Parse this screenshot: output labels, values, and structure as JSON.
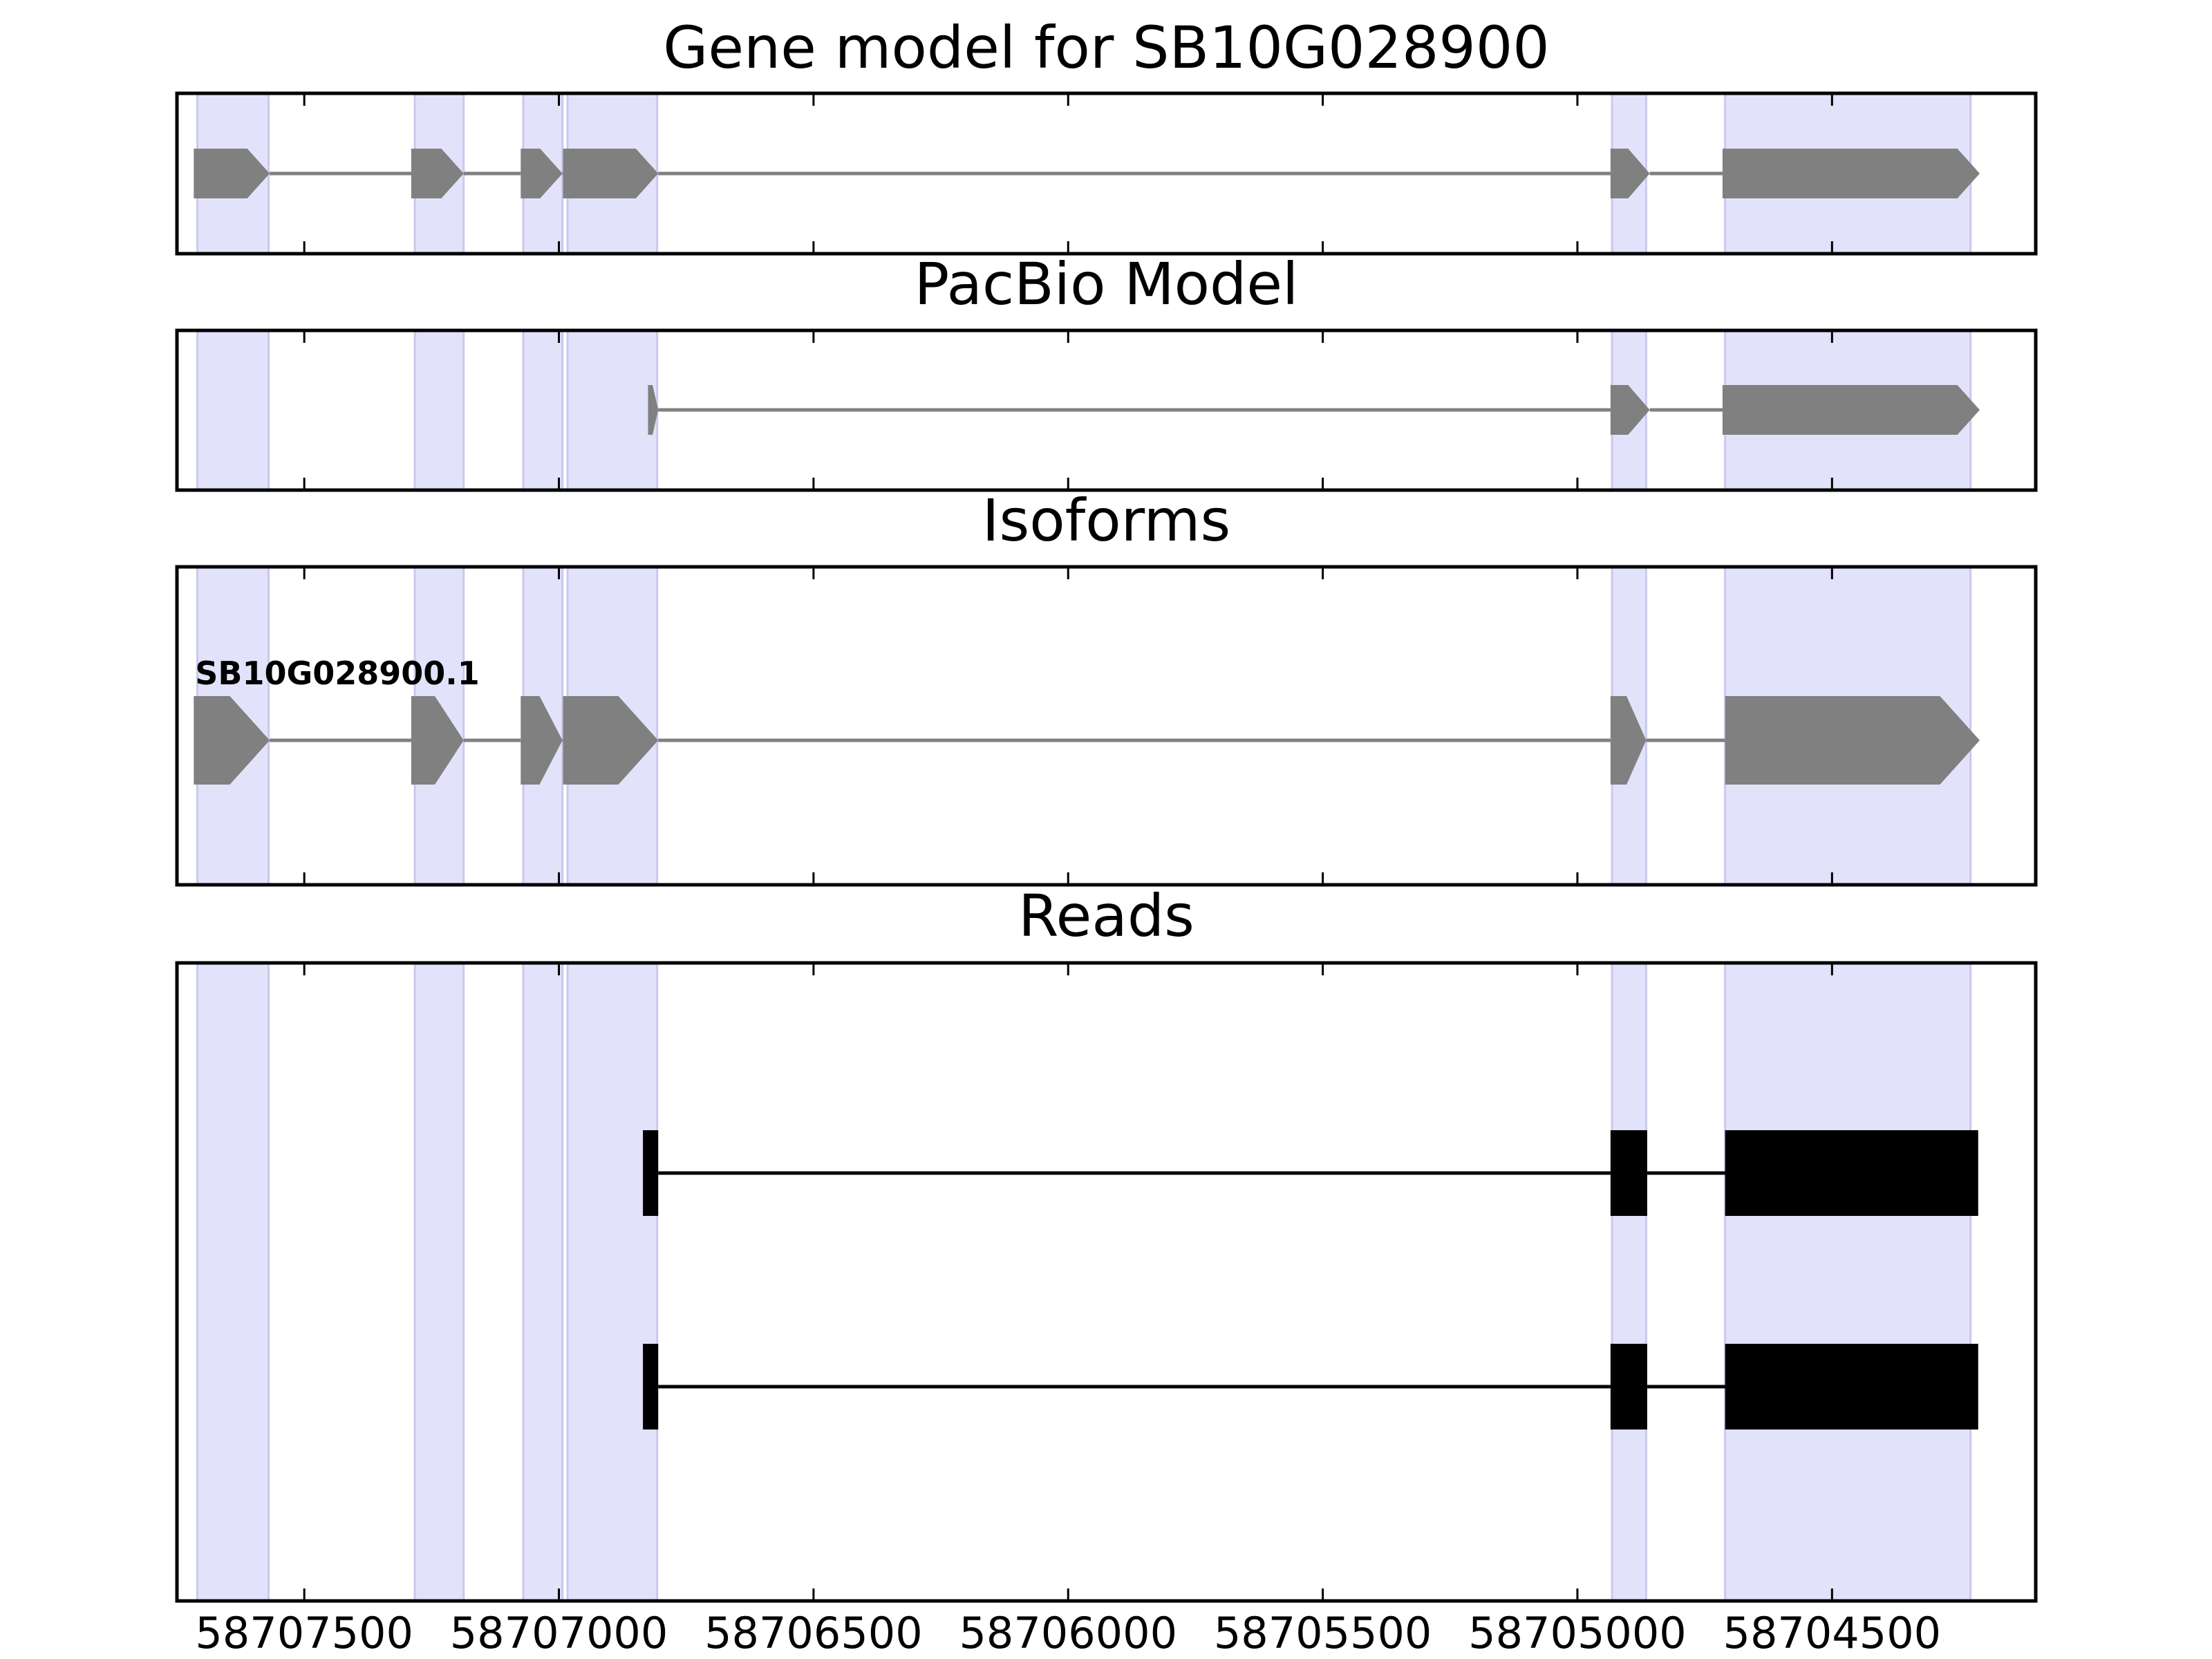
{
  "colors": {
    "background": "#ffffff",
    "exon_highlight": "#e2e2fb",
    "highlight_edge": "#c9c9ee",
    "feature_fill": "#808080",
    "intron_line": "#808080",
    "read_fill": "#000000",
    "frame": "#000000"
  },
  "chart_data": {
    "type": "gene-model tracks",
    "x_axis": {
      "lim": [
        58707750,
        58704100
      ],
      "inverted": true,
      "tick_values": [
        58707500,
        58707000,
        58706500,
        58706000,
        58705500,
        58705000,
        58704500
      ],
      "tick_labels": [
        "58707500",
        "58707000",
        "58706500",
        "58706000",
        "58705500",
        "58705000",
        "58704500"
      ]
    },
    "highlight_exons": [
      [
        58707710,
        58707570
      ],
      [
        58707283,
        58707187
      ],
      [
        58707070,
        58706993
      ],
      [
        58706983,
        58706807
      ],
      [
        58704932,
        58704865
      ],
      [
        58704710,
        58704228
      ]
    ],
    "panels": [
      {
        "id": "gene-model",
        "title": "Gene model for SB10G028900",
        "rows": [
          {
            "label": "",
            "exons": [
              [
                58707717,
                58707568
              ],
              [
                58707290,
                58707187
              ],
              [
                58707075,
                58706993
              ],
              [
                58706992,
                58706805
              ],
              [
                58704935,
                58704858
              ],
              [
                58704715,
                58704210
              ]
            ]
          }
        ]
      },
      {
        "id": "pacbio-model",
        "title": "PacBio Model",
        "rows": [
          {
            "label": "",
            "exons": [
              [
                58706825,
                58706805
              ],
              [
                58704935,
                58704858
              ],
              [
                58704715,
                58704210
              ]
            ]
          }
        ]
      },
      {
        "id": "isoforms",
        "title": "Isoforms",
        "rows": [
          {
            "label": "SB10G028900.1",
            "exons": [
              [
                58707717,
                58707568
              ],
              [
                58707290,
                58707187
              ],
              [
                58707075,
                58706993
              ],
              [
                58706992,
                58706805
              ],
              [
                58704935,
                58704865
              ],
              [
                58704710,
                58704210
              ]
            ]
          }
        ]
      },
      {
        "id": "reads",
        "title": "Reads",
        "rows": [
          {
            "label": "",
            "exons": [
              [
                58706835,
                58706805
              ],
              [
                58704935,
                58704863
              ],
              [
                58704710,
                58704213
              ]
            ]
          },
          {
            "label": "",
            "exons": [
              [
                58706835,
                58706805
              ],
              [
                58704935,
                58704863
              ],
              [
                58704710,
                58704213
              ]
            ]
          }
        ]
      }
    ]
  }
}
